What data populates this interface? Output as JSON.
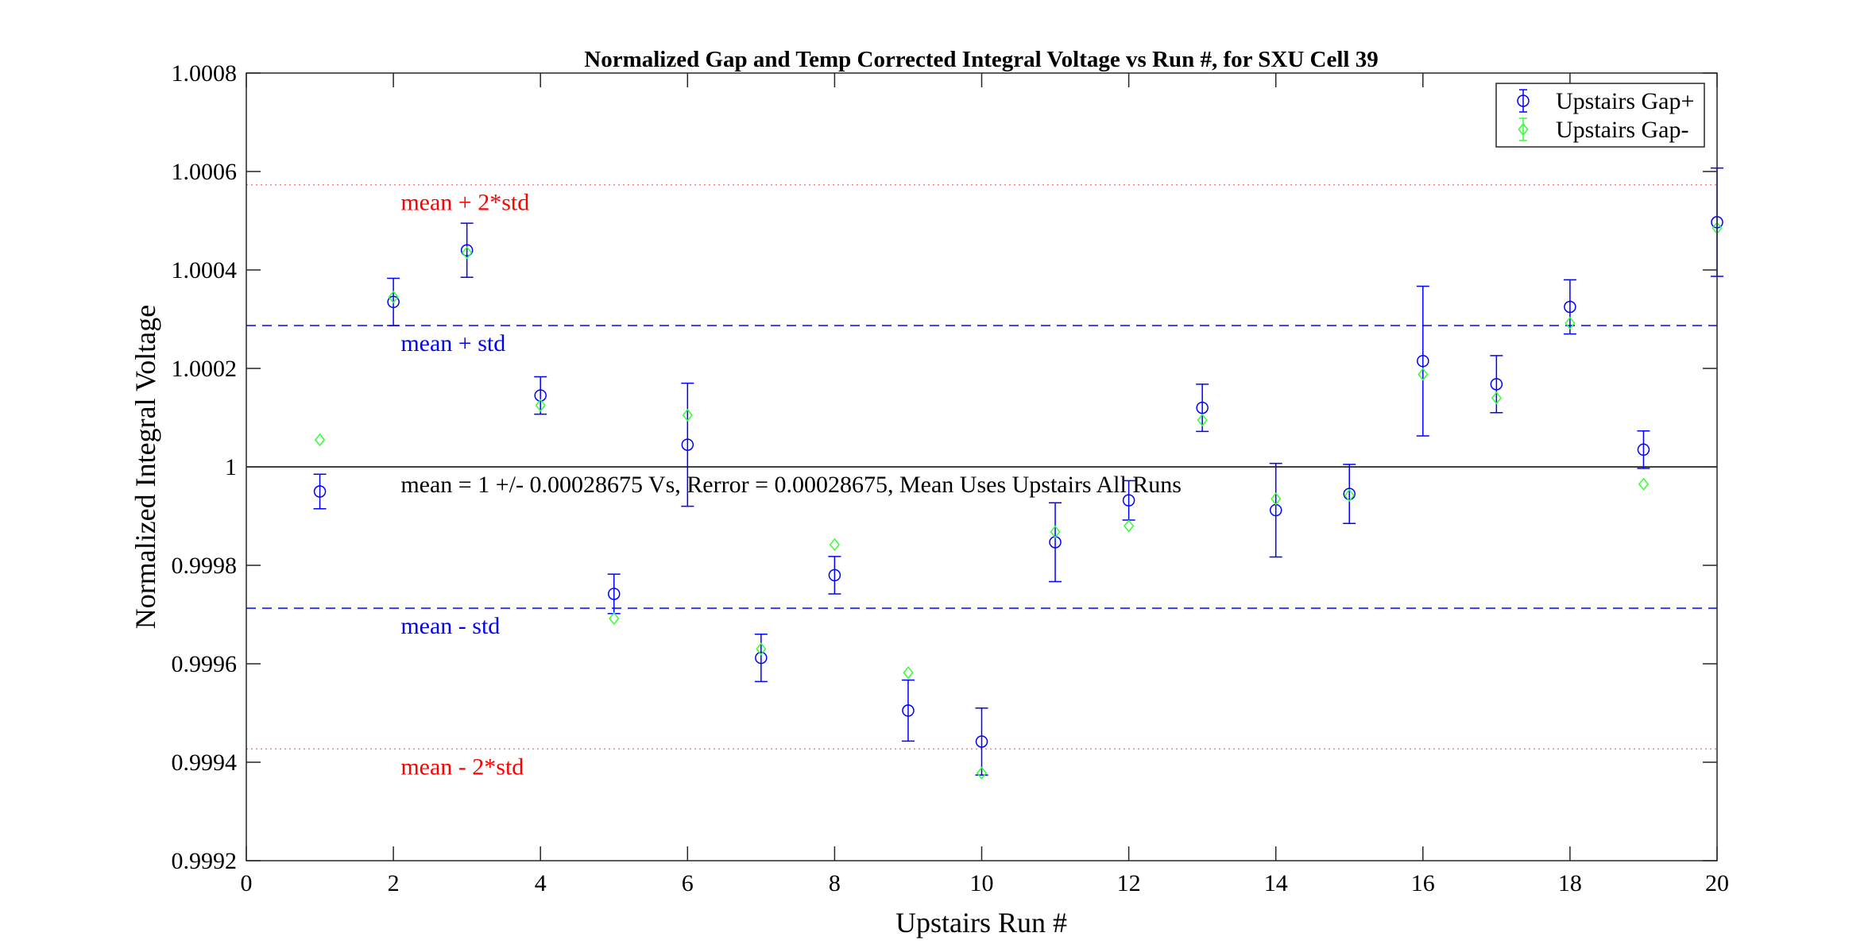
{
  "chart_data": {
    "type": "scatter",
    "title": "Normalized Gap and Temp Corrected Integral Voltage vs Run #, for SXU Cell 39",
    "xlabel": "Upstairs Run #",
    "ylabel": "Normalized Integral Voltage",
    "xlim": [
      0,
      20
    ],
    "ylim": [
      0.9992,
      1.0008
    ],
    "xticks": [
      0,
      2,
      4,
      6,
      8,
      10,
      12,
      14,
      16,
      18,
      20
    ],
    "xtick_labels": [
      "0",
      "2",
      "4",
      "6",
      "8",
      "10",
      "12",
      "14",
      "16",
      "18",
      "20"
    ],
    "yticks": [
      0.9992,
      0.9994,
      0.9996,
      0.9998,
      1.0,
      1.0002,
      1.0004,
      1.0006,
      1.0008
    ],
    "ytick_labels": [
      "0.9992",
      "0.9994",
      "0.9996",
      "0.9998",
      "1",
      "1.0002",
      "1.0004",
      "1.0006",
      "1.0008"
    ],
    "grid": false,
    "legend_position": "top-right",
    "series": [
      {
        "name": "Upstairs Gap+",
        "color": "#0000ff",
        "marker": "circle",
        "x": [
          1,
          2,
          3,
          4,
          5,
          6,
          7,
          8,
          9,
          10,
          11,
          12,
          13,
          14,
          15,
          16,
          17,
          18,
          19,
          20
        ],
        "y": [
          0.99995,
          1.000335,
          1.00044,
          1.000145,
          0.999742,
          1.000045,
          0.999612,
          0.99978,
          0.999505,
          0.999442,
          0.999847,
          0.999932,
          1.00012,
          0.999912,
          0.999945,
          1.000215,
          1.000168,
          1.000325,
          1.000035,
          1.000497
        ],
        "err": [
          3.5e-05,
          4.8e-05,
          5.5e-05,
          3.8e-05,
          4e-05,
          0.000125,
          4.8e-05,
          3.8e-05,
          6.2e-05,
          6.8e-05,
          8e-05,
          4e-05,
          4.8e-05,
          9.5e-05,
          6e-05,
          0.000152,
          5.8e-05,
          5.5e-05,
          3.8e-05,
          0.00011
        ]
      },
      {
        "name": "Upstairs Gap-",
        "color": "#33ff33",
        "marker": "diamond",
        "x": [
          1,
          2,
          3,
          4,
          5,
          6,
          7,
          8,
          9,
          10,
          11,
          12,
          13,
          14,
          15,
          16,
          17,
          18,
          19,
          20
        ],
        "y": [
          1.000055,
          1.000345,
          1.000435,
          1.000125,
          0.999692,
          1.000105,
          0.99963,
          0.999842,
          0.999582,
          0.999378,
          0.999868,
          0.99988,
          1.000095,
          0.999935,
          0.999942,
          1.000188,
          1.00014,
          1.000292,
          0.999965,
          1.000485
        ]
      }
    ],
    "reference_lines": [
      {
        "value": 1.000573,
        "style": "dotted",
        "color": "#ff8080",
        "label": "mean + 2*std",
        "label_color": "#ff0000"
      },
      {
        "value": 1.000287,
        "style": "dashed",
        "color": "#0000ff",
        "label": "mean + std",
        "label_color": "#0000ff"
      },
      {
        "value": 1.0,
        "style": "solid",
        "color": "#000000",
        "label": "mean = 1 +/- 0.00028675 Vs, Rerror = 0.00028675, Mean Uses Upstairs All Runs",
        "label_color": "#000000"
      },
      {
        "value": 0.999713,
        "style": "dashed",
        "color": "#0000ff",
        "label": "mean - std",
        "label_color": "#0000ff"
      },
      {
        "value": 0.999427,
        "style": "dotted",
        "color": "#ff8080",
        "label": "mean - 2*std",
        "label_color": "#ff0000"
      }
    ]
  }
}
